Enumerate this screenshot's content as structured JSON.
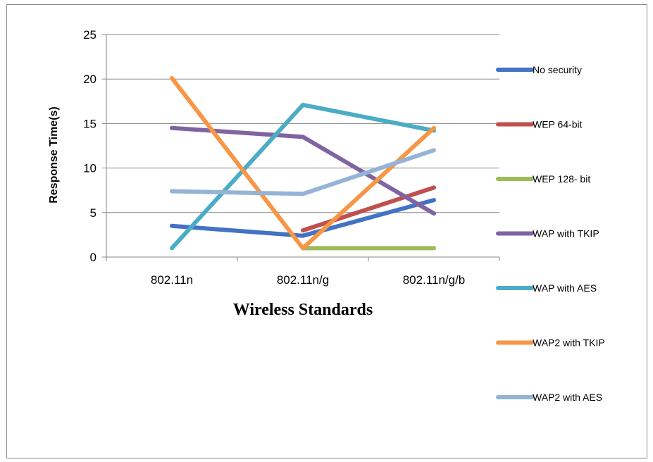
{
  "chart_data": {
    "type": "line",
    "xlabel": "Wireless Standards",
    "ylabel": "Response Time(s)",
    "categories": [
      "802.11n",
      "802.11n/g",
      "802.11n/g/b"
    ],
    "ylim": [
      0,
      25
    ],
    "yticks": [
      "0",
      "5",
      "10",
      "15",
      "20",
      "25"
    ],
    "grid": true,
    "legend_position": "right",
    "series": [
      {
        "name": "No security",
        "color": "#4472c4",
        "values": [
          3.5,
          2.4,
          6.4
        ]
      },
      {
        "name": "WEP 64-bit",
        "color": "#c0504d",
        "values": [
          null,
          3.0,
          7.8
        ]
      },
      {
        "name": "WEP 128- bit",
        "color": "#9bbb59",
        "values": [
          null,
          1.0,
          1.0
        ]
      },
      {
        "name": "WAP with TKIP",
        "color": "#8064a2",
        "values": [
          14.5,
          13.5,
          4.9
        ]
      },
      {
        "name": "WAP with AES",
        "color": "#4bacc6",
        "values": [
          1.0,
          17.1,
          14.2
        ]
      },
      {
        "name": "WAP2 with TKIP",
        "color": "#f79646",
        "values": [
          20.1,
          1.0,
          14.5
        ]
      },
      {
        "name": "WAP2 with AES",
        "color": "#95b3d7",
        "values": [
          7.4,
          7.1,
          12.0
        ]
      }
    ]
  }
}
